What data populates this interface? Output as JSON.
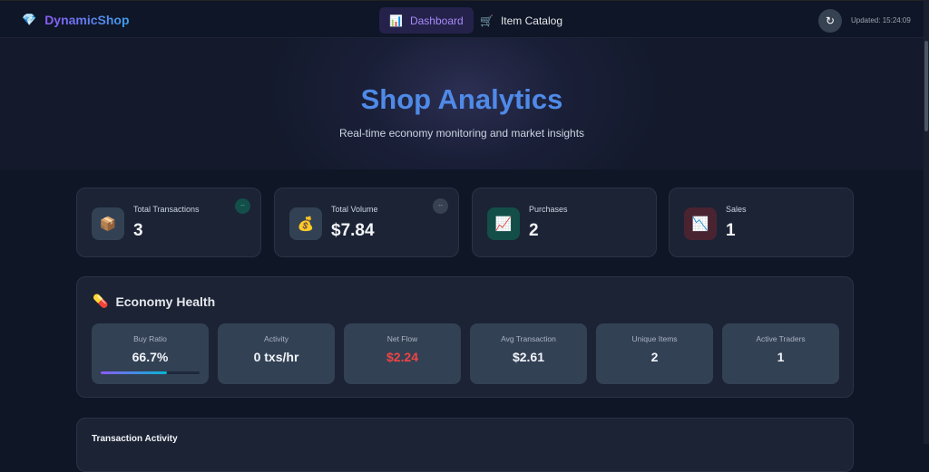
{
  "nav": {
    "brand": "DynamicShop",
    "tabs": [
      {
        "icon": "📊",
        "label": "Dashboard",
        "active": true
      },
      {
        "icon": "🛒",
        "label": "Item Catalog",
        "active": false
      }
    ],
    "refresh_icon": "↻",
    "updated": "Updated: 15:24:09"
  },
  "hero": {
    "title": "Shop Analytics",
    "subtitle": "Real-time economy monitoring and market insights"
  },
  "stats": [
    {
      "icon": "📦",
      "label": "Total Transactions",
      "value": "3",
      "badge": "--"
    },
    {
      "icon": "💰",
      "label": "Total Volume",
      "value": "$7.84",
      "badge": "--"
    },
    {
      "icon": "📈",
      "label": "Purchases",
      "value": "2"
    },
    {
      "icon": "📉",
      "label": "Sales",
      "value": "1"
    }
  ],
  "economy": {
    "icon": "💊",
    "title": "Economy Health",
    "tiles": [
      {
        "label": "Buy Ratio",
        "value": "66.7%",
        "progress": 66.7
      },
      {
        "label": "Activity",
        "value": "0 txs/hr"
      },
      {
        "label": "Net Flow",
        "value": "$2.24",
        "color": "#ef4444"
      },
      {
        "label": "Avg Transaction",
        "value": "$2.61"
      },
      {
        "label": "Unique Items",
        "value": "2"
      },
      {
        "label": "Active Traders",
        "value": "1"
      }
    ]
  },
  "activity": {
    "title": "Transaction Activity"
  }
}
